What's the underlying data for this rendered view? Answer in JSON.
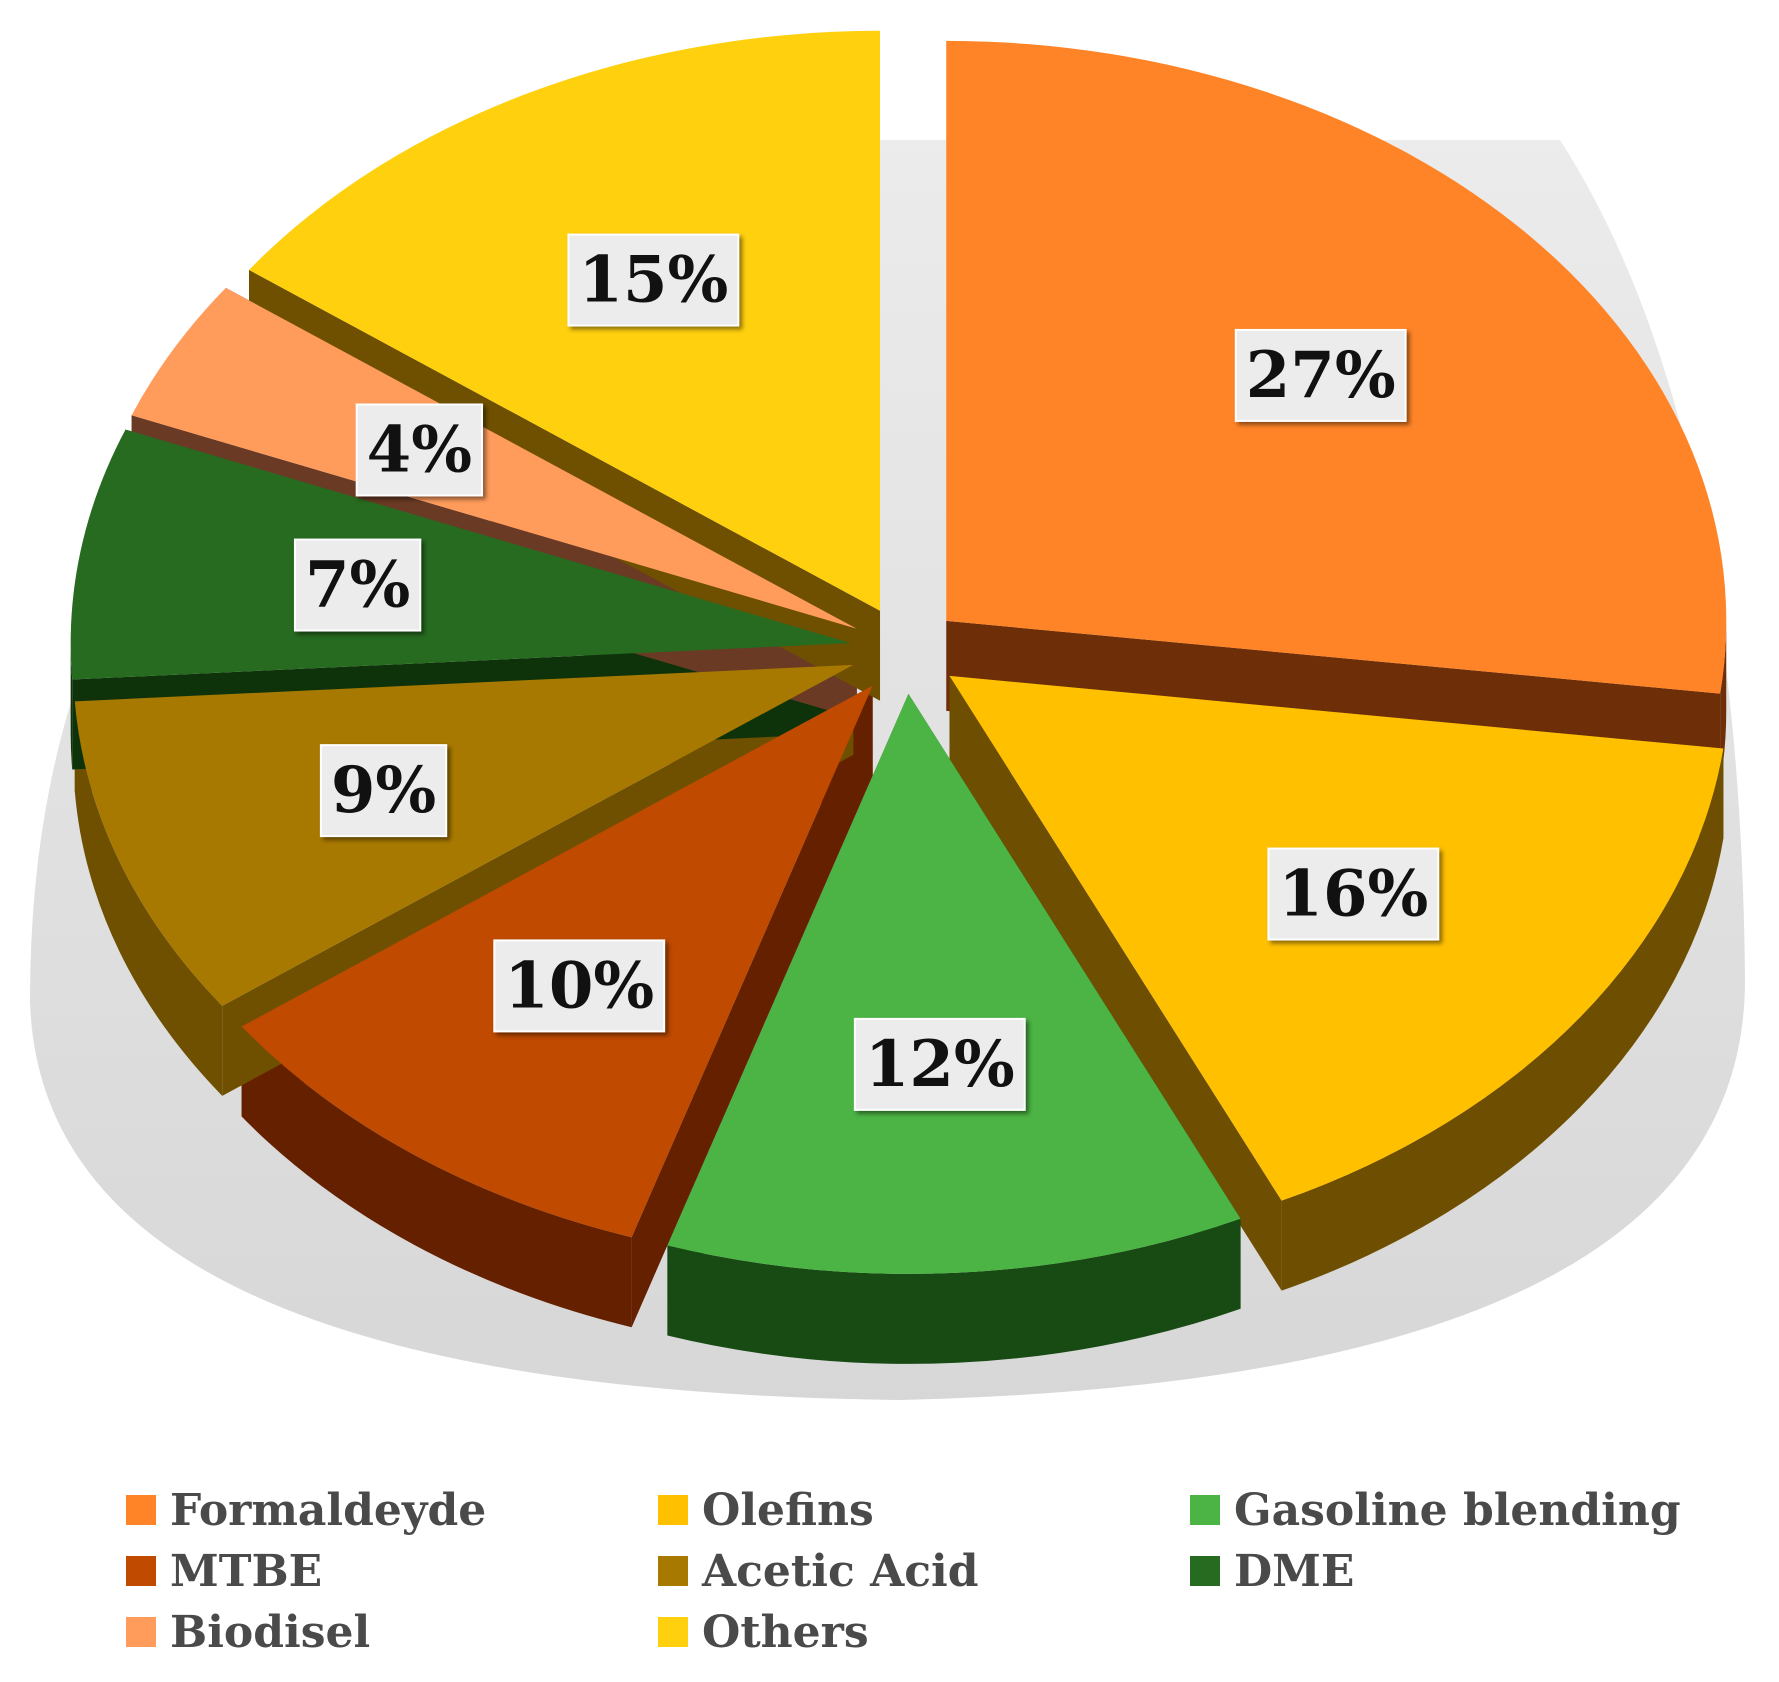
{
  "chart_data": {
    "type": "pie",
    "style": "3d exploded",
    "slices": [
      {
        "label": "Formaldeyde",
        "value": 27,
        "display": "27%",
        "color": "#FF8427",
        "side_color": "#6E2E08"
      },
      {
        "label": "Olefins",
        "value": 16,
        "display": "16%",
        "color": "#FFC000",
        "side_color": "#6E4E00"
      },
      {
        "label": "Gasoline blending",
        "value": 12,
        "display": "12%",
        "color": "#4CB444",
        "side_color": "#184A14"
      },
      {
        "label": "MTBE",
        "value": 10,
        "display": "10%",
        "color": "#BF4A00",
        "side_color": "#652000"
      },
      {
        "label": "Acetic Acid",
        "value": 9,
        "display": "9%",
        "color": "#A87900",
        "side_color": "#6E5000"
      },
      {
        "label": "DME",
        "value": 7,
        "display": "7%",
        "color": "#276B20",
        "side_color": "#0E330A"
      },
      {
        "label": "Biodisel",
        "value": 4,
        "display": "4%",
        "color": "#FF9C5C",
        "side_color": "#6A3A24"
      },
      {
        "label": "Others",
        "value": 15,
        "display": "15%",
        "color": "#FFD00E",
        "side_color": "#6E5000"
      }
    ],
    "legend": {
      "placement": "bottom",
      "columns": 3,
      "items": [
        {
          "label": "Formaldeyde",
          "color": "#FF8427"
        },
        {
          "label": "Olefins",
          "color": "#FFC000"
        },
        {
          "label": "Gasoline blending",
          "color": "#4CB444"
        },
        {
          "label": "MTBE",
          "color": "#BF4A00"
        },
        {
          "label": "Acetic Acid",
          "color": "#A87900"
        },
        {
          "label": "DME",
          "color": "#276B20"
        },
        {
          "label": "Biodisel",
          "color": "#FF9C5C"
        },
        {
          "label": "Others",
          "color": "#FFD00E"
        }
      ]
    }
  }
}
